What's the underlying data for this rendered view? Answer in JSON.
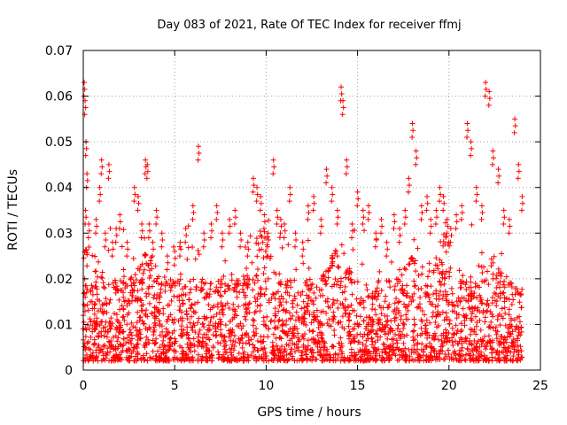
{
  "chart_data": {
    "type": "scatter",
    "title": "Day 083 of 2021, Rate Of TEC Index for receiver ffmj",
    "xlabel": "GPS time / hours",
    "ylabel": "ROTI / TECUs",
    "xlim": [
      0,
      25
    ],
    "ylim": [
      0,
      0.07
    ],
    "xticks": [
      0,
      5,
      10,
      15,
      20,
      25
    ],
    "xtick_labels": [
      "0",
      "5",
      "10",
      "15",
      "20",
      "25"
    ],
    "yticks": [
      0,
      0.01,
      0.02,
      0.03,
      0.04,
      0.05,
      0.06,
      0.07
    ],
    "ytick_labels": [
      "0",
      "0.01",
      "0.02",
      "0.03",
      "0.04",
      "0.05",
      "0.06",
      "0.07"
    ],
    "grid": true,
    "marker": "+",
    "color": "#ff0000",
    "series": [
      {
        "name": "ROTI",
        "x": [
          0.0,
          0.05,
          0.1,
          0.15,
          0.2,
          0.08,
          0.12,
          0.3,
          0.5,
          0.7,
          0.9,
          1.0,
          1.2,
          1.4,
          1.6,
          1.8,
          2.0,
          2.2,
          2.4,
          2.6,
          2.8,
          3.0,
          3.2,
          3.4,
          3.5,
          3.6,
          3.8,
          4.0,
          4.3,
          4.6,
          5.0,
          5.3,
          5.6,
          6.0,
          6.3,
          6.6,
          7.0,
          7.3,
          7.6,
          8.0,
          8.3,
          8.6,
          9.0,
          9.3,
          9.5,
          9.7,
          9.9,
          10.1,
          10.4,
          10.6,
          10.8,
          11.0,
          11.3,
          11.6,
          12.0,
          12.3,
          12.6,
          13.0,
          13.3,
          13.6,
          13.9,
          14.1,
          14.2,
          14.4,
          14.7,
          15.0,
          15.3,
          15.6,
          16.0,
          16.3,
          16.6,
          17.0,
          17.3,
          17.6,
          17.8,
          18.0,
          18.2,
          18.5,
          18.8,
          19.0,
          19.3,
          19.5,
          19.7,
          19.9,
          20.1,
          20.4,
          20.7,
          21.0,
          21.2,
          21.5,
          21.8,
          22.0,
          22.2,
          22.4,
          22.7,
          23.0,
          23.3,
          23.6,
          23.8,
          24.0
        ],
        "y": [
          0.012,
          0.063,
          0.059,
          0.05,
          0.043,
          0.02,
          0.035,
          0.032,
          0.018,
          0.033,
          0.04,
          0.046,
          0.03,
          0.045,
          0.028,
          0.031,
          0.034,
          0.022,
          0.028,
          0.02,
          0.04,
          0.038,
          0.032,
          0.046,
          0.045,
          0.032,
          0.028,
          0.035,
          0.03,
          0.025,
          0.026,
          0.028,
          0.031,
          0.036,
          0.049,
          0.03,
          0.032,
          0.036,
          0.03,
          0.033,
          0.035,
          0.03,
          0.028,
          0.042,
          0.04,
          0.038,
          0.034,
          0.03,
          0.046,
          0.035,
          0.033,
          0.032,
          0.04,
          0.03,
          0.028,
          0.036,
          0.038,
          0.033,
          0.044,
          0.04,
          0.035,
          0.062,
          0.059,
          0.046,
          0.032,
          0.039,
          0.035,
          0.036,
          0.03,
          0.033,
          0.028,
          0.034,
          0.031,
          0.035,
          0.042,
          0.054,
          0.048,
          0.036,
          0.038,
          0.033,
          0.035,
          0.04,
          0.038,
          0.033,
          0.031,
          0.034,
          0.036,
          0.054,
          0.05,
          0.04,
          0.036,
          0.063,
          0.061,
          0.048,
          0.044,
          0.035,
          0.033,
          0.055,
          0.045,
          0.038
        ]
      }
    ],
    "dense_band": {
      "description": "dense cloud of points between lower and upper envelope",
      "x_range": [
        0,
        24
      ],
      "y_low": 0.002,
      "y_core_high": 0.02,
      "y_envelope_high": 0.032
    }
  }
}
